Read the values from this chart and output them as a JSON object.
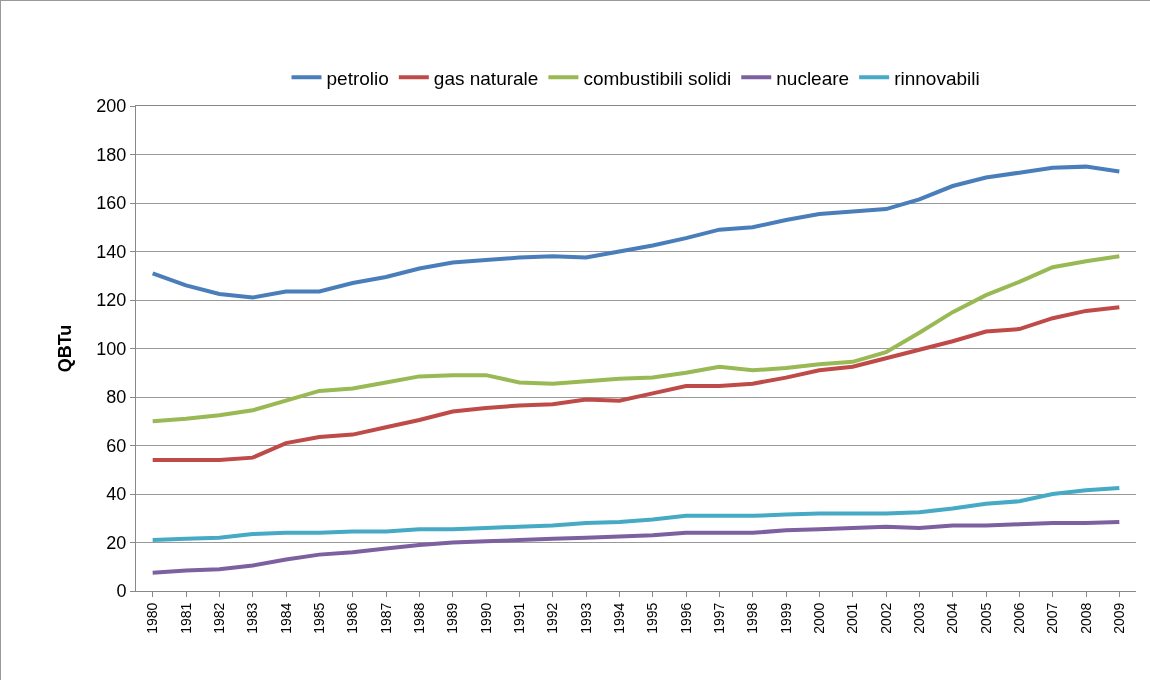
{
  "chart_data": {
    "type": "line",
    "ylabel": "QBTu",
    "categories": [
      "1980",
      "1981",
      "1982",
      "1983",
      "1984",
      "1985",
      "1986",
      "1987",
      "1988",
      "1989",
      "1990",
      "1991",
      "1992",
      "1993",
      "1994",
      "1995",
      "1996",
      "1997",
      "1998",
      "1999",
      "2000",
      "2001",
      "2002",
      "2003",
      "2004",
      "2005",
      "2006",
      "2007",
      "2008",
      "2009"
    ],
    "series": [
      {
        "name": "petrolio",
        "color": "#4a7ebb",
        "values": [
          131,
          126,
          122.5,
          121,
          123.5,
          123.5,
          127,
          129.5,
          133,
          135.5,
          136.5,
          137.5,
          138,
          137.5,
          140,
          142.5,
          145.5,
          149,
          150,
          153,
          155.5,
          156.5,
          157.5,
          161.5,
          167,
          170.5,
          172.5,
          174.5,
          175,
          173
        ]
      },
      {
        "name": "gas naturale",
        "color": "#be4b48",
        "values": [
          54,
          54,
          54,
          55,
          61,
          63.5,
          64.5,
          67.5,
          70.5,
          74,
          75.5,
          76.5,
          77,
          79,
          78.5,
          81.5,
          84.5,
          84.5,
          85.5,
          88,
          91,
          92.5,
          96,
          99.5,
          103,
          107,
          108,
          112.5,
          115.5,
          117
        ]
      },
      {
        "name": "combustibili solidi",
        "color": "#98b954",
        "values": [
          70,
          71,
          72.5,
          74.5,
          78.5,
          82.5,
          83.5,
          86,
          88.5,
          89,
          89,
          86,
          85.5,
          86.5,
          87.5,
          88,
          90,
          92.5,
          91,
          92,
          93.5,
          94.5,
          98.5,
          106.5,
          115,
          122,
          127.5,
          133.5,
          136,
          138
        ]
      },
      {
        "name": "nucleare",
        "color": "#7d60a0",
        "values": [
          7.5,
          8.5,
          9,
          10.5,
          13,
          15,
          16,
          17.5,
          19,
          20,
          20.5,
          21,
          21.5,
          22,
          22.5,
          23,
          24,
          24,
          24,
          25,
          25.5,
          26,
          26.5,
          26,
          27,
          27,
          27.5,
          28,
          28,
          28.5
        ]
      },
      {
        "name": "rinnovabili",
        "color": "#46aac5",
        "values": [
          21,
          21.5,
          22,
          23.5,
          24,
          24,
          24.5,
          24.5,
          25.5,
          25.5,
          26,
          26.5,
          27,
          28,
          28.5,
          29.5,
          31,
          31,
          31,
          31.5,
          32,
          32,
          32,
          32.5,
          34,
          36,
          37,
          40,
          41.5,
          42.5
        ]
      }
    ],
    "ylim": [
      0,
      200
    ],
    "yticks": [
      0,
      20,
      40,
      60,
      80,
      100,
      120,
      140,
      160,
      180,
      200
    ],
    "grid": "y",
    "legend": "top",
    "marker": "none",
    "line_style": "solid"
  }
}
